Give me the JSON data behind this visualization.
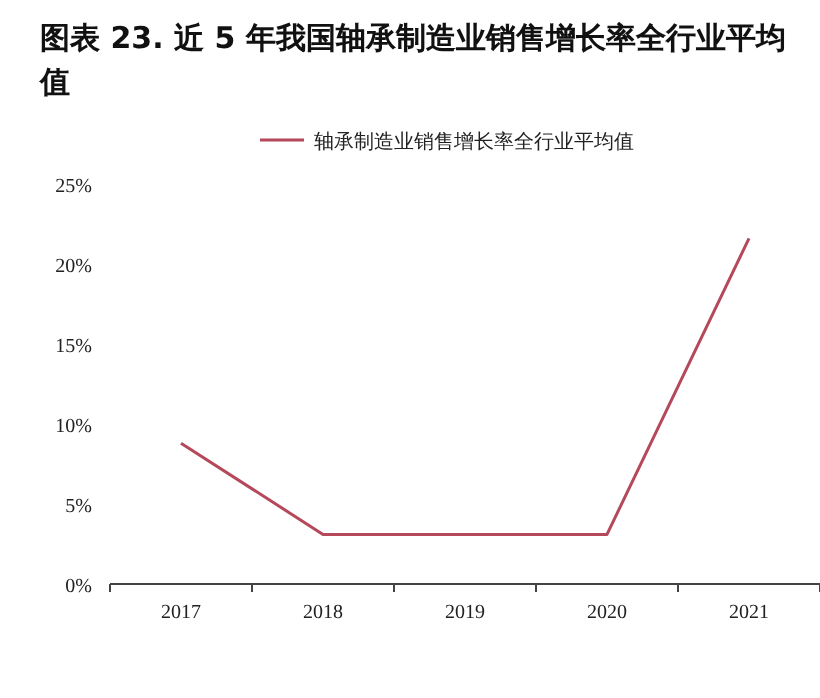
{
  "chart_data": {
    "type": "line",
    "title": "图表 23. 近 5 年我国轴承制造业销售增长率全行业平均值",
    "categories": [
      "2017",
      "2018",
      "2019",
      "2020",
      "2021"
    ],
    "series": [
      {
        "name": "轴承制造业销售增长率全行业平均值",
        "color": "#b5495b",
        "values": [
          8.8,
          3.1,
          3.1,
          3.1,
          21.6
        ]
      }
    ],
    "ylim": [
      0,
      25
    ],
    "yticks": [
      {
        "value": 0,
        "label": "0%"
      },
      {
        "value": 5,
        "label": "5%"
      },
      {
        "value": 10,
        "label": "10%"
      },
      {
        "value": 15,
        "label": "15%"
      },
      {
        "value": 20,
        "label": "20%"
      },
      {
        "value": 25,
        "label": "25%"
      }
    ],
    "legend": "top",
    "grid": false,
    "marker": "none",
    "line_style": "solid"
  }
}
